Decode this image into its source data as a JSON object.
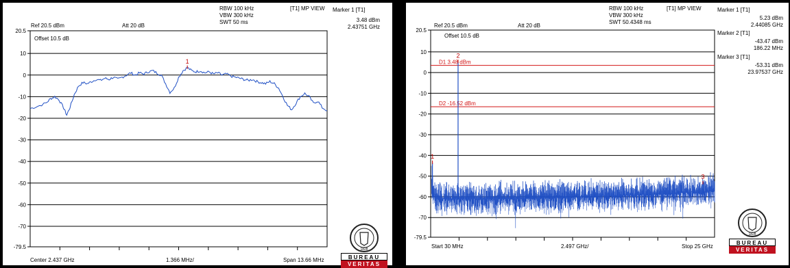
{
  "colors": {
    "trace": "#1f4fc4",
    "line": "#d21414",
    "marker": "#c00000",
    "grid": "#000000",
    "brand": "#c0111f"
  },
  "logo": {
    "text": "BUREAU VERITAS",
    "year": "1828",
    "top": "BUREAU",
    "bottom": "VERITAS",
    "icon": "bureau-veritas-seal-icon"
  },
  "chart_data": [
    {
      "type": "line",
      "header": {
        "ref": "Ref 20.5 dBm",
        "att": "Att  20 dB",
        "rbw": "RBW 100 kHz",
        "vbw": "VBW 300 kHz",
        "swt": "SWT 50 ms",
        "view": "[T1] MP VIEW",
        "offset": "Offset 10.5 dB"
      },
      "markers": [
        {
          "title": "Marker 1 [T1]",
          "level": "3.48 dBm",
          "freq": "2.43751 GHz",
          "label": "1"
        }
      ],
      "y_ticks": [
        "20.5",
        "10",
        "0",
        "-10",
        "-20",
        "-30",
        "-40",
        "-50",
        "-60",
        "-70",
        "-79.5"
      ],
      "ylim": [
        -79.5,
        20.5
      ],
      "xlim_mhz": [
        2430.17,
        2443.83
      ],
      "footer": {
        "left": "Center 2.437 GHz",
        "mid": "1.366 MHz/",
        "right": "Span 13.66 MHz"
      },
      "trace_points": [
        [
          2430.17,
          -15.5
        ],
        [
          2430.5,
          -14.5
        ],
        [
          2430.9,
          -13
        ],
        [
          2431.1,
          -11
        ],
        [
          2431.3,
          -10
        ],
        [
          2431.5,
          -11.5
        ],
        [
          2431.7,
          -15
        ],
        [
          2431.85,
          -18.5
        ],
        [
          2432.0,
          -15
        ],
        [
          2432.2,
          -9
        ],
        [
          2432.4,
          -5
        ],
        [
          2432.6,
          -3.5
        ],
        [
          2432.8,
          -4
        ],
        [
          2433.0,
          -3
        ],
        [
          2433.2,
          -2
        ],
        [
          2433.4,
          -2.5
        ],
        [
          2433.6,
          -1.5
        ],
        [
          2433.8,
          -2
        ],
        [
          2434.0,
          -1
        ],
        [
          2434.2,
          -2
        ],
        [
          2434.4,
          -1
        ],
        [
          2434.6,
          0
        ],
        [
          2434.8,
          1
        ],
        [
          2435.0,
          0
        ],
        [
          2435.2,
          1
        ],
        [
          2435.4,
          0.5
        ],
        [
          2435.6,
          1.5
        ],
        [
          2435.8,
          2
        ],
        [
          2436.0,
          1
        ],
        [
          2436.2,
          0
        ],
        [
          2436.4,
          -4
        ],
        [
          2436.6,
          -8
        ],
        [
          2436.8,
          -6
        ],
        [
          2437.0,
          -1
        ],
        [
          2437.2,
          2
        ],
        [
          2437.4,
          3.48
        ],
        [
          2437.6,
          2
        ],
        [
          2437.8,
          1.5
        ],
        [
          2438.0,
          2
        ],
        [
          2438.2,
          1
        ],
        [
          2438.4,
          1.5
        ],
        [
          2438.6,
          0.5
        ],
        [
          2438.8,
          1
        ],
        [
          2439.0,
          0
        ],
        [
          2439.2,
          0.5
        ],
        [
          2439.4,
          -0.5
        ],
        [
          2439.6,
          -1
        ],
        [
          2439.8,
          -1.5
        ],
        [
          2440.0,
          -2
        ],
        [
          2440.2,
          -2.5
        ],
        [
          2440.4,
          -2
        ],
        [
          2440.6,
          -3
        ],
        [
          2440.8,
          -3.5
        ],
        [
          2441.0,
          -4
        ],
        [
          2441.2,
          -3
        ],
        [
          2441.4,
          -4
        ],
        [
          2441.6,
          -6
        ],
        [
          2441.8,
          -10
        ],
        [
          2442.0,
          -14
        ],
        [
          2442.2,
          -16
        ],
        [
          2442.4,
          -13
        ],
        [
          2442.6,
          -10
        ],
        [
          2442.8,
          -8.5
        ],
        [
          2443.0,
          -10
        ],
        [
          2443.2,
          -13
        ],
        [
          2443.4,
          -12
        ],
        [
          2443.6,
          -15
        ],
        [
          2443.83,
          -16.5
        ]
      ]
    },
    {
      "type": "line",
      "header": {
        "ref": "Ref 20.5 dBm",
        "att": "Att  20 dB",
        "rbw": "RBW 100 kHz",
        "vbw": "VBW 300 kHz",
        "swt": "SWT 50.4348 ms",
        "view": "[T1] MP VIEW",
        "offset": "Offset 10.5 dB"
      },
      "markers": [
        {
          "title": "Marker 1 [T1]",
          "level": "5.23 dBm",
          "freq": "2.44085 GHz",
          "label": "1"
        },
        {
          "title": "Marker 2 [T1]",
          "level": "-43.47 dBm",
          "freq": "186.22 MHz",
          "label": "2"
        },
        {
          "title": "Marker 3 [T1]",
          "level": "-53.31 dBm",
          "freq": "23.97537 GHz",
          "label": "3"
        }
      ],
      "display_lines": [
        {
          "label": "D1 3.48 dBm",
          "level": 3.48
        },
        {
          "label": "D2 -16.52 dBm",
          "level": -16.52
        }
      ],
      "y_ticks": [
        "20.5",
        "10",
        "0",
        "-10",
        "-20",
        "-30",
        "-40",
        "-50",
        "-60",
        "-70",
        "-79.5"
      ],
      "ylim": [
        -79.5,
        20.5
      ],
      "xlim_mhz": [
        30,
        25000
      ],
      "footer": {
        "left": "Start 30 MHz",
        "mid": "2.497 GHz/",
        "right": "Stop 25 GHz"
      },
      "noise_floor_dbm": -60,
      "spikes": [
        [
          186.22,
          -43.47
        ],
        [
          2440.85,
          5.23
        ],
        [
          23975.37,
          -53.31
        ]
      ]
    }
  ]
}
